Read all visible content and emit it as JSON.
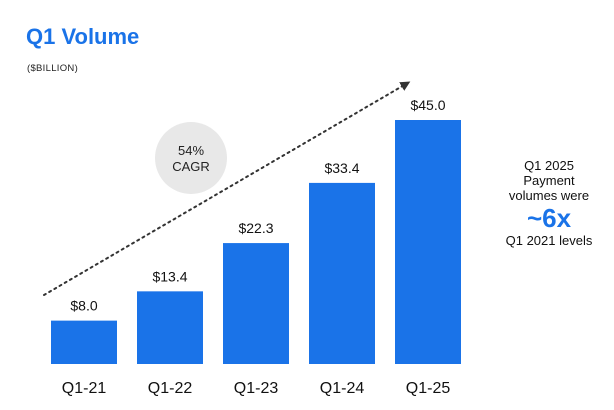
{
  "header": {
    "title": "Q1 Volume",
    "subtitle": "($BILLION)"
  },
  "colors": {
    "bar": "#1a73e8",
    "title": "#1a73e8",
    "cagr_circle": "#e8e8e8",
    "trend_line": "#222222"
  },
  "cagr": {
    "line1": "54%",
    "line2": "CAGR"
  },
  "callout": {
    "line1": "Q1 2025",
    "line2": "Payment",
    "line3": "volumes were",
    "big": "~6x",
    "line4": "Q1 2021 levels"
  },
  "chart_data": {
    "type": "bar",
    "title": "Q1 Volume",
    "subtitle": "($BILLION)",
    "categories": [
      "Q1-21",
      "Q1-22",
      "Q1-23",
      "Q1-24",
      "Q1-25"
    ],
    "values": [
      8.0,
      13.4,
      22.3,
      33.4,
      45.0
    ],
    "value_labels": [
      "$8.0",
      "$13.4",
      "$22.3",
      "$33.4",
      "$45.0"
    ],
    "ylim": [
      0,
      45
    ],
    "grid": false,
    "legend": "none",
    "annotations": [
      "54% CAGR",
      "Q1 2025 Payment volumes were ~6x Q1 2021 levels"
    ]
  }
}
